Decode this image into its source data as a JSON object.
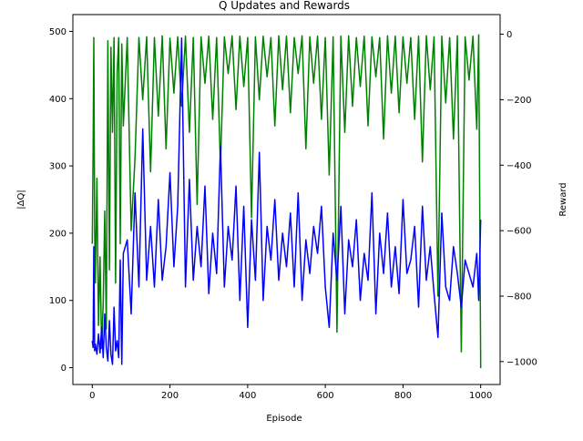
{
  "chart_data": {
    "type": "line",
    "title": "Q Updates and Rewards",
    "xlabel": "Episode",
    "ylabel_left": "|ΔQ|",
    "ylabel_right": "Reward",
    "xlim": [
      -50,
      1050
    ],
    "ylim_left": [
      -25,
      525
    ],
    "ylim_right": [
      -1070,
      60
    ],
    "x_ticks": [
      0,
      200,
      400,
      600,
      800,
      1000
    ],
    "y_left_ticks": [
      0,
      100,
      200,
      300,
      400,
      500
    ],
    "y_right_ticks": [
      0,
      -200,
      -400,
      -600,
      -800,
      -1000
    ],
    "grid": false,
    "legend": "none",
    "series": [
      {
        "axis": "right",
        "color": "#008000",
        "x": [
          0,
          2,
          4,
          6,
          8,
          12,
          16,
          20,
          24,
          28,
          32,
          36,
          40,
          44,
          48,
          52,
          56,
          60,
          64,
          68,
          72,
          76,
          80,
          90,
          100,
          110,
          120,
          130,
          140,
          150,
          160,
          170,
          180,
          190,
          200,
          210,
          220,
          230,
          240,
          250,
          260,
          270,
          280,
          290,
          300,
          310,
          320,
          330,
          340,
          350,
          360,
          370,
          380,
          390,
          400,
          410,
          420,
          430,
          440,
          450,
          460,
          470,
          480,
          490,
          500,
          510,
          520,
          530,
          540,
          550,
          560,
          570,
          580,
          590,
          600,
          610,
          620,
          630,
          640,
          650,
          660,
          670,
          680,
          690,
          700,
          710,
          720,
          730,
          740,
          750,
          760,
          770,
          780,
          790,
          800,
          810,
          820,
          830,
          840,
          850,
          860,
          870,
          880,
          890,
          900,
          910,
          920,
          930,
          940,
          950,
          960,
          970,
          980,
          990,
          995,
          1000
        ],
        "values": [
          -640,
          -360,
          -10,
          -600,
          -760,
          -440,
          -890,
          -680,
          -960,
          -820,
          -540,
          -900,
          -20,
          -720,
          -40,
          -300,
          -10,
          -760,
          -120,
          -10,
          -640,
          -30,
          -280,
          -10,
          -600,
          -380,
          -10,
          -200,
          -8,
          -420,
          -10,
          -250,
          -5,
          -350,
          -12,
          -180,
          -8,
          -220,
          -6,
          -300,
          -10,
          -520,
          -8,
          -150,
          -6,
          -260,
          -10,
          -400,
          -8,
          -120,
          -5,
          -230,
          -6,
          -160,
          -10,
          -560,
          -8,
          -200,
          -6,
          -130,
          -10,
          -280,
          -5,
          -170,
          -6,
          -240,
          -10,
          -120,
          -5,
          -350,
          -8,
          -150,
          -6,
          -260,
          -10,
          -430,
          -8,
          -910,
          -6,
          -300,
          -5,
          -220,
          -10,
          -160,
          -6,
          -280,
          -8,
          -130,
          -10,
          -320,
          -5,
          -180,
          -6,
          -240,
          -8,
          -150,
          -10,
          -260,
          -6,
          -390,
          -5,
          -170,
          -8,
          -800,
          -6,
          -210,
          -10,
          -320,
          -5,
          -970,
          -8,
          -140,
          -6,
          -290,
          -2,
          -1020
        ]
      },
      {
        "axis": "left",
        "color": "#0000ff",
        "x": [
          0,
          2,
          4,
          6,
          8,
          12,
          16,
          20,
          24,
          28,
          32,
          36,
          40,
          44,
          48,
          52,
          56,
          60,
          64,
          68,
          72,
          76,
          80,
          90,
          100,
          110,
          120,
          130,
          140,
          150,
          160,
          170,
          180,
          190,
          200,
          210,
          220,
          230,
          240,
          250,
          260,
          270,
          280,
          290,
          300,
          310,
          320,
          330,
          340,
          350,
          360,
          370,
          380,
          390,
          400,
          410,
          420,
          430,
          440,
          450,
          460,
          470,
          480,
          490,
          500,
          510,
          520,
          530,
          540,
          550,
          560,
          570,
          580,
          590,
          600,
          610,
          620,
          630,
          640,
          650,
          660,
          670,
          680,
          690,
          700,
          710,
          720,
          730,
          740,
          750,
          760,
          770,
          780,
          790,
          800,
          810,
          820,
          830,
          840,
          850,
          860,
          870,
          880,
          890,
          900,
          910,
          920,
          930,
          940,
          950,
          960,
          970,
          980,
          990,
          995,
          1000
        ],
        "values": [
          40,
          30,
          180,
          25,
          35,
          20,
          50,
          22,
          60,
          15,
          80,
          30,
          10,
          70,
          20,
          5,
          90,
          25,
          40,
          15,
          160,
          5,
          170,
          190,
          80,
          260,
          120,
          355,
          130,
          210,
          120,
          250,
          130,
          180,
          290,
          150,
          240,
          490,
          120,
          280,
          130,
          210,
          150,
          270,
          110,
          200,
          140,
          330,
          120,
          210,
          160,
          270,
          100,
          240,
          60,
          220,
          130,
          320,
          100,
          210,
          160,
          250,
          130,
          200,
          150,
          230,
          120,
          260,
          100,
          190,
          140,
          210,
          170,
          240,
          120,
          60,
          200,
          130,
          240,
          80,
          190,
          150,
          220,
          100,
          170,
          130,
          260,
          80,
          200,
          140,
          230,
          120,
          180,
          110,
          250,
          140,
          160,
          210,
          90,
          240,
          130,
          180,
          110,
          45,
          230,
          120,
          100,
          180,
          140,
          90,
          160,
          140,
          120,
          170,
          100,
          220
        ]
      }
    ]
  }
}
